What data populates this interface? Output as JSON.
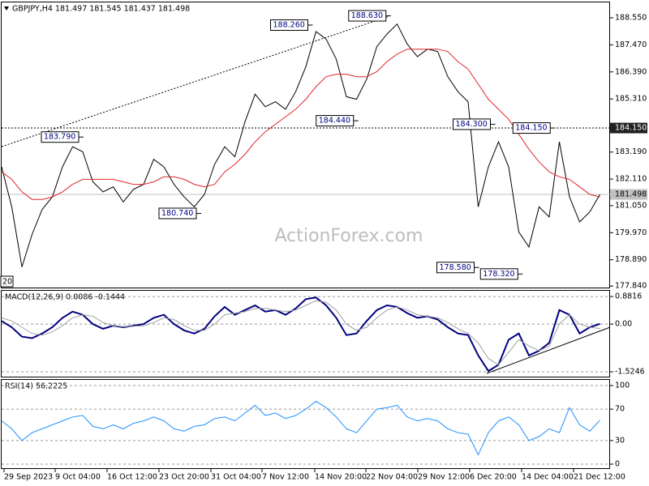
{
  "watermark": "ActionForex.com",
  "chart_data": [
    {
      "type": "line",
      "title": "GBPJPY,H4 181.497 181.545 181.437 181.498",
      "x": [
        0,
        1,
        2,
        3,
        4,
        5,
        6,
        7,
        8,
        9,
        10,
        11,
        12,
        13,
        14,
        15,
        16,
        17,
        18,
        19,
        20,
        21,
        22,
        23,
        24,
        25,
        26,
        27,
        28,
        29,
        30,
        31,
        32,
        33,
        34,
        35,
        36,
        37,
        38,
        39,
        40,
        41,
        42,
        43,
        44,
        45,
        46,
        47,
        48,
        49,
        50,
        51,
        52,
        53,
        54,
        55,
        56,
        57,
        58,
        59
      ],
      "series": [
        {
          "color": "#000000",
          "values": [
            182.6,
            181.0,
            178.6,
            179.9,
            180.9,
            181.4,
            182.6,
            183.4,
            183.2,
            182.0,
            181.6,
            181.8,
            181.2,
            181.7,
            181.9,
            182.9,
            182.6,
            181.9,
            181.4,
            181.0,
            181.5,
            182.7,
            183.4,
            183.0,
            184.4,
            185.5,
            185.0,
            185.2,
            184.9,
            185.6,
            186.6,
            188.0,
            187.7,
            186.9,
            185.4,
            185.3,
            186.1,
            187.4,
            187.9,
            188.3,
            187.5,
            187.0,
            187.3,
            187.2,
            186.2,
            185.6,
            185.2,
            181.0,
            182.6,
            183.6,
            182.6,
            180.0,
            179.4,
            181.0,
            180.6,
            183.6,
            181.4,
            180.4,
            180.8,
            181.5
          ]
        },
        {
          "color": "#e0262a",
          "values": [
            182.4,
            182.1,
            181.6,
            181.3,
            181.3,
            181.4,
            181.6,
            181.9,
            182.1,
            182.1,
            182.1,
            182.1,
            182.0,
            181.9,
            181.9,
            182.0,
            182.2,
            182.2,
            182.1,
            181.9,
            181.8,
            181.9,
            182.4,
            182.7,
            183.1,
            183.6,
            184.0,
            184.3,
            184.6,
            184.9,
            185.3,
            185.8,
            186.2,
            186.3,
            186.3,
            186.2,
            186.2,
            186.4,
            186.8,
            187.1,
            187.3,
            187.3,
            187.3,
            187.3,
            187.2,
            186.8,
            186.5,
            185.9,
            185.3,
            184.9,
            184.5,
            183.9,
            183.3,
            182.8,
            182.4,
            182.2,
            182.1,
            181.8,
            181.5,
            181.4
          ]
        }
      ],
      "xlim": [
        0,
        60
      ],
      "ylim": [
        177.78,
        189.1
      ],
      "yticks": [
        {
          "value": 188.55,
          "label": "188.550"
        },
        {
          "value": 187.47,
          "label": "187.470"
        },
        {
          "value": 186.39,
          "label": "186.390"
        },
        {
          "value": 185.31,
          "label": "185.310"
        },
        {
          "value": 183.19,
          "label": "183.190"
        },
        {
          "value": 182.11,
          "label": "182.110"
        },
        {
          "value": 181.05,
          "label": "181.050"
        },
        {
          "value": 179.97,
          "label": "179.970"
        },
        {
          "value": 178.89,
          "label": "178.890"
        },
        {
          "value": 177.84,
          "label": "177.840"
        }
      ],
      "annotations": [
        {
          "x": 30.2,
          "value": 188.26,
          "label": "188.260"
        },
        {
          "x": 37.9,
          "value": 188.63,
          "label": "188.630"
        },
        {
          "x": 7.6,
          "value": 183.79,
          "label": "183.790"
        },
        {
          "x": 34.7,
          "value": 184.44,
          "label": "184.440"
        },
        {
          "x": 19.2,
          "value": 180.74,
          "label": "180.740"
        },
        {
          "x": 48.2,
          "value": 184.3,
          "label": "184.300"
        },
        {
          "x": 54.1,
          "value": 184.15,
          "label": "184.150"
        },
        {
          "x": 46.6,
          "value": 178.58,
          "label": "178.580"
        },
        {
          "x": 50.9,
          "value": 178.32,
          "label": "178.320"
        }
      ],
      "clipped_label": "20",
      "levels": [
        {
          "value": 184.15,
          "label": "184.150"
        }
      ],
      "last_price": {
        "value": 181.498,
        "label": "181.498"
      }
    },
    {
      "type": "line",
      "title": "MACD(12,26,9) 0.0086 -0.1444",
      "x": [
        0,
        1,
        2,
        3,
        4,
        5,
        6,
        7,
        8,
        9,
        10,
        11,
        12,
        13,
        14,
        15,
        16,
        17,
        18,
        19,
        20,
        21,
        22,
        23,
        24,
        25,
        26,
        27,
        28,
        29,
        30,
        31,
        32,
        33,
        34,
        35,
        36,
        37,
        38,
        39,
        40,
        41,
        42,
        43,
        44,
        45,
        46,
        47,
        48,
        49,
        50,
        51,
        52,
        53,
        54,
        55,
        56,
        57,
        58,
        59
      ],
      "series": [
        {
          "color": "#000080",
          "values": [
            0.1,
            -0.1,
            -0.4,
            -0.45,
            -0.3,
            -0.1,
            0.2,
            0.4,
            0.3,
            0.0,
            -0.15,
            -0.05,
            -0.1,
            -0.05,
            0.0,
            0.2,
            0.3,
            0.0,
            -0.2,
            -0.3,
            -0.15,
            0.25,
            0.55,
            0.3,
            0.45,
            0.6,
            0.4,
            0.45,
            0.3,
            0.5,
            0.8,
            0.85,
            0.6,
            0.2,
            -0.35,
            -0.3,
            0.1,
            0.45,
            0.6,
            0.55,
            0.35,
            0.2,
            0.25,
            0.15,
            -0.1,
            -0.3,
            -0.35,
            -1.0,
            -1.5,
            -1.3,
            -0.5,
            -0.3,
            -1.0,
            -0.85,
            -0.6,
            0.45,
            0.3,
            -0.3,
            -0.1,
            0.01
          ]
        },
        {
          "color": "#a0a0a0",
          "values": [
            0.2,
            0.1,
            -0.1,
            -0.3,
            -0.35,
            -0.25,
            -0.05,
            0.2,
            0.3,
            0.25,
            0.05,
            -0.05,
            -0.08,
            -0.07,
            -0.05,
            0.05,
            0.2,
            0.15,
            -0.05,
            -0.2,
            -0.2,
            0.0,
            0.3,
            0.35,
            0.4,
            0.5,
            0.5,
            0.45,
            0.4,
            0.45,
            0.6,
            0.75,
            0.7,
            0.45,
            0.0,
            -0.2,
            -0.1,
            0.2,
            0.45,
            0.55,
            0.45,
            0.3,
            0.25,
            0.2,
            0.05,
            -0.15,
            -0.3,
            -0.6,
            -1.1,
            -1.3,
            -0.9,
            -0.5,
            -0.7,
            -0.85,
            -0.7,
            0.0,
            0.3,
            0.0,
            -0.1,
            -0.14
          ]
        }
      ],
      "xlim": [
        0,
        60
      ],
      "ylim": [
        -1.68,
        1.04
      ],
      "yticks": [
        0.8816,
        {
          "value": 0,
          "label": "0.00"
        },
        -1.5246
      ],
      "grid": true
    },
    {
      "type": "line",
      "title": "RSI(14) 56.2225",
      "x": [
        0,
        1,
        2,
        3,
        4,
        5,
        6,
        7,
        8,
        9,
        10,
        11,
        12,
        13,
        14,
        15,
        16,
        17,
        18,
        19,
        20,
        21,
        22,
        23,
        24,
        25,
        26,
        27,
        28,
        29,
        30,
        31,
        32,
        33,
        34,
        35,
        36,
        37,
        38,
        39,
        40,
        41,
        42,
        43,
        44,
        45,
        46,
        47,
        48,
        49,
        50,
        51,
        52,
        53,
        54,
        55,
        56,
        57,
        58,
        59
      ],
      "series": [
        {
          "color": "#1e90ff",
          "values": [
            55,
            45,
            30,
            40,
            45,
            50,
            55,
            60,
            62,
            48,
            45,
            50,
            45,
            52,
            55,
            60,
            55,
            45,
            42,
            48,
            50,
            58,
            60,
            55,
            65,
            75,
            62,
            65,
            58,
            62,
            70,
            80,
            72,
            60,
            45,
            40,
            55,
            70,
            72,
            75,
            60,
            55,
            58,
            55,
            45,
            40,
            38,
            12,
            40,
            55,
            60,
            50,
            30,
            35,
            45,
            40,
            72,
            50,
            42,
            56
          ]
        }
      ],
      "xlim": [
        0,
        60
      ],
      "ylim": [
        0,
        100
      ],
      "yticks": [
        100,
        70,
        30,
        0
      ],
      "grid": true,
      "xticks": [
        {
          "value": 0.24,
          "label": "29 Sep 2023"
        },
        {
          "value": 5.28,
          "label": "9 Oct 04:00"
        },
        {
          "value": 10.4,
          "label": "16 Oct 12:00"
        },
        {
          "value": 15.52,
          "label": "23 Oct 20:00"
        },
        {
          "value": 20.64,
          "label": "31 Oct 04:00"
        },
        {
          "value": 25.68,
          "label": "7 Nov 12:00"
        },
        {
          "value": 30.88,
          "label": "14 Nov 20:00"
        },
        {
          "value": 35.92,
          "label": "22 Nov 04:00"
        },
        {
          "value": 41.04,
          "label": "29 Nov 12:00"
        },
        {
          "value": 46.16,
          "label": "6 Dec 20:00"
        },
        {
          "value": 51.28,
          "label": "14 Dec 04:00"
        },
        {
          "value": 56.4,
          "label": "21 Dec 12:00"
        }
      ]
    }
  ]
}
